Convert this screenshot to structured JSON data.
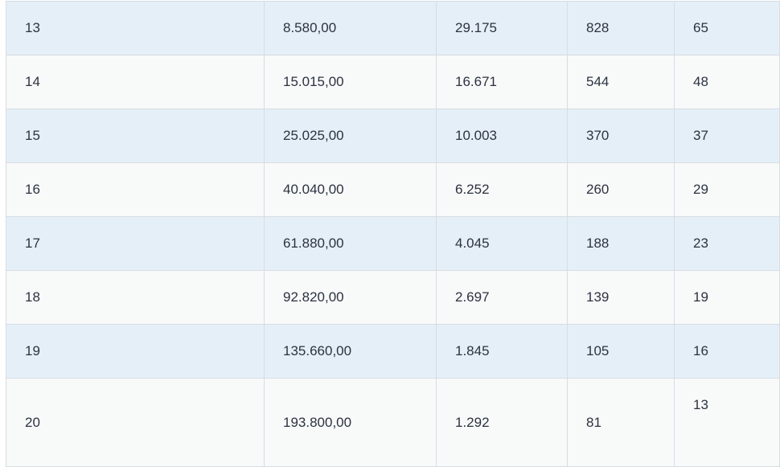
{
  "table": {
    "rows": [
      [
        "13",
        "8.580,00",
        "29.175",
        "828",
        "65"
      ],
      [
        "14",
        "15.015,00",
        "16.671",
        "544",
        "48"
      ],
      [
        "15",
        "25.025,00",
        "10.003",
        "370",
        "37"
      ],
      [
        "16",
        "40.040,00",
        "6.252",
        "260",
        "29"
      ],
      [
        "17",
        "61.880,00",
        "4.045",
        "188",
        "23"
      ],
      [
        "18",
        "92.820,00",
        "2.697",
        "139",
        "19"
      ],
      [
        "19",
        "135.660,00",
        "1.845",
        "105",
        "16"
      ],
      [
        "20",
        "193.800,00",
        "1.292",
        "81",
        "13"
      ]
    ]
  },
  "colors": {
    "row_odd": "#e5eff7",
    "row_even": "#f8f9f9",
    "border": "#d7dde3",
    "text": "#2b3340"
  }
}
